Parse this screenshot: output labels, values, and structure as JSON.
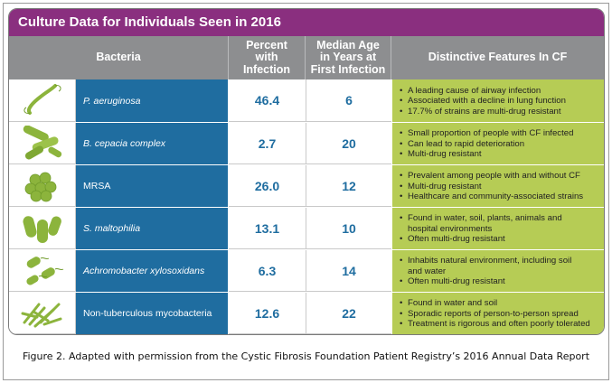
{
  "title": "Culture Data for Individuals Seen in 2016",
  "headers": {
    "bacteria": "Bacteria",
    "percent": [
      "Percent",
      "with",
      "Infection"
    ],
    "age": [
      "Median Age",
      "in Years at",
      "First Infection"
    ],
    "features": "Distinctive Features In CF"
  },
  "rows": [
    {
      "name": "P. aeruginosa",
      "italic": true,
      "percent": "46.4",
      "age": "6",
      "icon": "rod-bacterium-icon",
      "features": [
        "A leading cause of airway infection",
        "Associated with a decline in lung function",
        "17.7% of strains are multi-drug resistant"
      ]
    },
    {
      "name": "B. cepacia complex",
      "italic": true,
      "percent": "2.7",
      "age": "20",
      "icon": "bacilli-cluster-icon",
      "features": [
        "Small proportion of people with CF infected",
        "Can lead to rapid deterioration",
        "Multi-drug resistant"
      ]
    },
    {
      "name": "MRSA",
      "italic": false,
      "percent": "26.0",
      "age": "12",
      "icon": "cocci-cluster-icon",
      "features": [
        "Prevalent among people with and without CF",
        "Multi-drug resistant",
        "Healthcare and community-associated strains"
      ]
    },
    {
      "name": "S. maltophilia",
      "italic": true,
      "percent": "13.1",
      "age": "10",
      "icon": "rods-cluster-icon",
      "features": [
        "Found in water, soil, plants, animals and",
        "hospital environments",
        "Often multi-drug resistant"
      ],
      "feature_bullets": [
        true,
        false,
        true
      ]
    },
    {
      "name": "Achromobacter xylosoxidans",
      "italic": true,
      "percent": "6.3",
      "age": "14",
      "icon": "flagellated-rods-icon",
      "features": [
        "Inhabits natural environment, including soil",
        "and water",
        "Often multi-drug resistant"
      ],
      "feature_bullets": [
        true,
        false,
        true
      ]
    },
    {
      "name": "Non-tuberculous mycobacteria",
      "italic": false,
      "percent": "12.6",
      "age": "22",
      "icon": "mycobacteria-icon",
      "features": [
        "Found in water and soil",
        "Sporadic reports of person-to-person spread",
        "Treatment is rigorous and often poorly tolerated"
      ]
    }
  ],
  "caption": "Figure 2. Adapted with permission from the Cystic Fibrosis Foundation Patient Registry’s 2016 Annual Data Report",
  "colors": {
    "title_bg": "#8a2f7f",
    "header_bg": "#8d8e90",
    "name_bg": "#1f6da0",
    "feature_bg": "#b6cc55",
    "icon_green": "#8cb43c"
  }
}
